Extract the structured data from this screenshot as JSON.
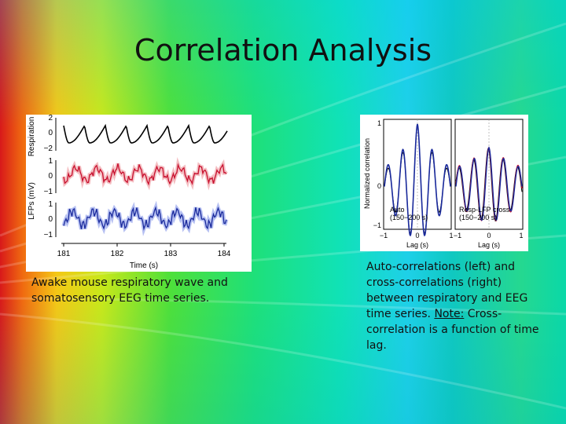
{
  "slide": {
    "title": "Correlation Analysis",
    "caption_left": "Awake mouse respiratory wave and somatosensory EEG time series.",
    "caption_right_pre": "Auto-correlations (left) and cross-correlations (right) between respiratory and EEG time series. ",
    "caption_right_note": "Note:",
    "caption_right_post": " Cross-correlation is a function of time lag."
  },
  "figure_left": {
    "ylabel_top": "Respiration",
    "ylabel_bottom": "LFPs (mV)",
    "xlabel": "Time (s)",
    "xticks": [
      "181",
      "182",
      "183",
      "184"
    ],
    "resp_yticks": [
      "2",
      "0",
      "−2"
    ],
    "lfp_red_yticks": [
      "1",
      "0",
      "−1"
    ],
    "lfp_blue_yticks": [
      "1",
      "0",
      "−1"
    ],
    "colors": {
      "respiration": "#000000",
      "lfp_red": "#c8102e",
      "lfp_blue": "#1a2a9c"
    }
  },
  "figure_right": {
    "ylabel": "Normalized correlation",
    "xlabel": "Lag (s)",
    "left_panel_label_1": "Auto",
    "left_panel_label_2": "(150−200 s)",
    "right_panel_label_1": "Resp-LFP cross",
    "right_panel_label_2": "(150−200 s)",
    "yticks": [
      "1",
      "0",
      "−1"
    ],
    "xticks_left": [
      "−1",
      "0",
      "1"
    ],
    "xticks_right": [
      "−1",
      "0",
      "1"
    ]
  }
}
